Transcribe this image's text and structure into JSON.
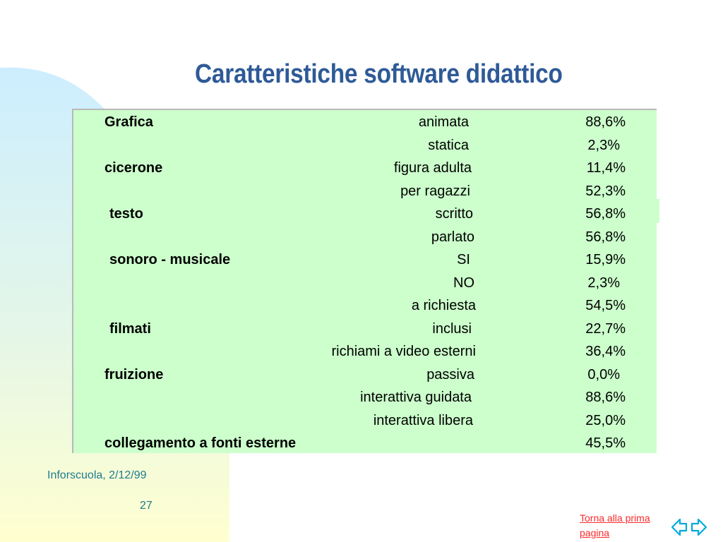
{
  "title": "Caratteristiche software didattico",
  "table": {
    "rows": [
      {
        "category": "Grafica",
        "option": "animata",
        "percent": "88,6%"
      },
      {
        "category": "",
        "option": "statica",
        "percent": "2,3%"
      },
      {
        "category": "cicerone",
        "option": "figura adulta",
        "percent": "11,4%"
      },
      {
        "category": "",
        "option": "per ragazzi",
        "percent": "52,3%"
      },
      {
        "category": "testo",
        "option": "scritto",
        "percent": "56,8%"
      },
      {
        "category": "",
        "option": "parlato",
        "percent": "56,8%"
      },
      {
        "category": "sonoro - musicale",
        "option": "SI",
        "percent": "15,9%"
      },
      {
        "category": "",
        "option": "NO",
        "percent": "2,3%"
      },
      {
        "category": "",
        "option": "a richiesta",
        "percent": "54,5%"
      },
      {
        "category": "filmati",
        "option": "inclusi",
        "percent": "22,7%"
      },
      {
        "category": "",
        "option": "richiami a video esterni",
        "percent": "36,4%"
      },
      {
        "category": "fruizione",
        "option": "passiva",
        "percent": "0,0%"
      },
      {
        "category": "",
        "option": "interattiva guidata",
        "percent": "88,6%"
      },
      {
        "category": "",
        "option": "interattiva libera",
        "percent": "25,0%"
      },
      {
        "category": "collegamento a fonti esterne",
        "option": "",
        "percent": "45,5%"
      }
    ]
  },
  "footer": {
    "source": "Inforscuola, 2/12/99",
    "page_number": "27",
    "back_link": "Torna alla prima pagina"
  },
  "icons": {
    "nav": "left-right-arrows-icon"
  },
  "colors": {
    "title": "#2e5a97",
    "table_bg": "#ccffcc",
    "footer_text": "#1f7a8c",
    "link": "#ff2a2a",
    "nav_icon": "#00aadd"
  }
}
